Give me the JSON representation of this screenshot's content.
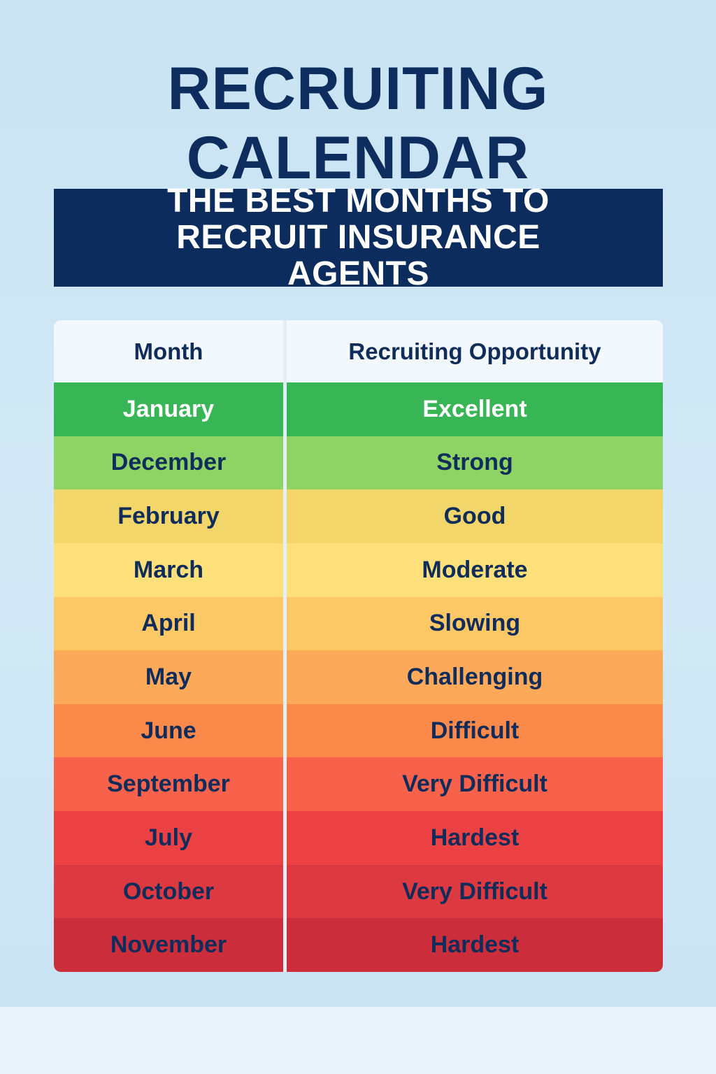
{
  "header": {
    "title": "RECRUITING CALENDAR"
  },
  "banner": {
    "title": "THE BEST MONTHS TO RECRUIT INSURANCE AGENTS"
  },
  "table": {
    "columns": [
      "Month",
      "Recruiting Opportunity"
    ],
    "rows": [
      [
        "January",
        "Excellent"
      ],
      [
        "December",
        "Strong"
      ],
      [
        "February",
        "Good"
      ],
      [
        "March",
        "Moderate"
      ],
      [
        "April",
        "Slowing"
      ],
      [
        "May",
        "Challenging"
      ],
      [
        "June",
        "Difficult"
      ],
      [
        "September",
        "Very Difficult"
      ],
      [
        "July",
        "Hardest"
      ],
      [
        "October",
        "Very Difficult"
      ],
      [
        "November",
        "Hardest"
      ]
    ]
  }
}
